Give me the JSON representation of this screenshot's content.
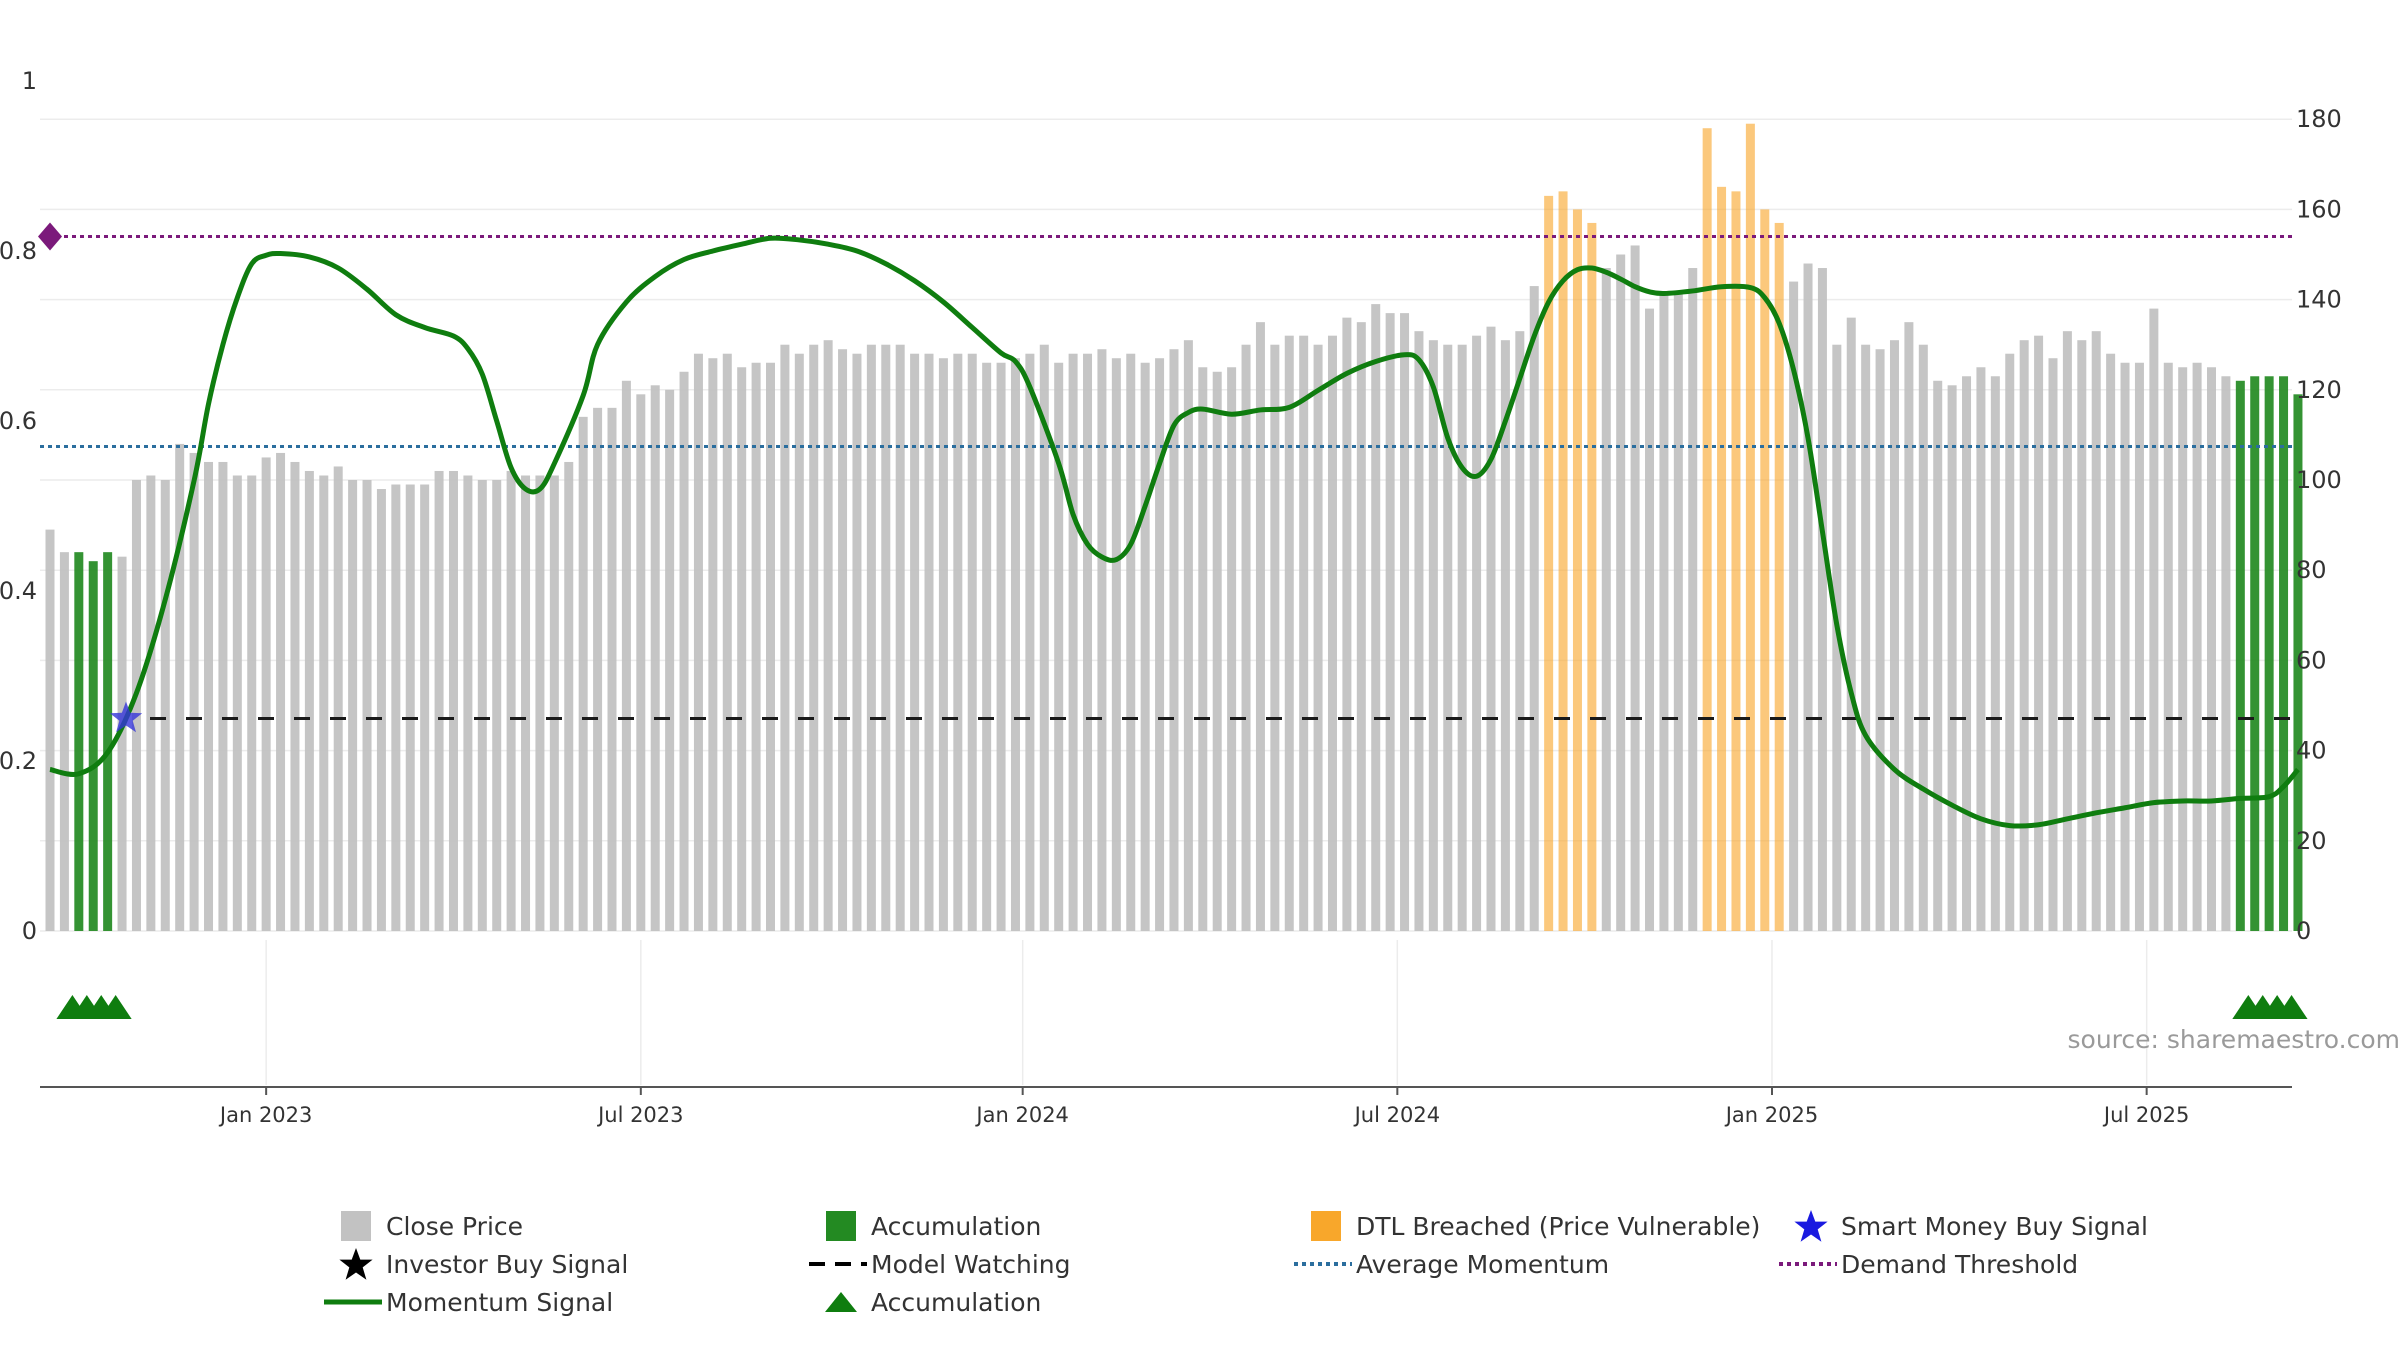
{
  "chart_data": {
    "type": "bar+line",
    "title": "",
    "source": "source: sharemaestro.com",
    "left_axis": {
      "ticks": [
        "0",
        "0.2",
        "0.4",
        "0.6",
        "0.8",
        "1"
      ],
      "ylim": [
        0,
        1
      ]
    },
    "right_axis": {
      "ticks": [
        "0",
        "20",
        "40",
        "60",
        "80",
        "100",
        "120",
        "140",
        "160",
        "180"
      ],
      "ylim": [
        0,
        180
      ]
    },
    "x_ticks": [
      "Jan 2023",
      "Jul 2023",
      "Jan 2024",
      "Jul 2024",
      "Jan 2025",
      "Jul 2025"
    ],
    "x_tick_weeks": [
      15,
      41,
      67.5,
      93.5,
      119.5,
      145.5
    ],
    "n_weeks": 157,
    "close_price": [
      89,
      84,
      84,
      82,
      84,
      83,
      100,
      101,
      100,
      108,
      106,
      104,
      104,
      101,
      101,
      105,
      106,
      104,
      102,
      101,
      103,
      100,
      100,
      98,
      99,
      99,
      99,
      102,
      102,
      101,
      100,
      100,
      102,
      101,
      101,
      101,
      104,
      114,
      116,
      116,
      122,
      119,
      121,
      120,
      124,
      128,
      127,
      128,
      125,
      126,
      126,
      130,
      128,
      130,
      131,
      129,
      128,
      130,
      130,
      130,
      128,
      128,
      127,
      128,
      128,
      126,
      126,
      127,
      128,
      130,
      126,
      128,
      128,
      129,
      127,
      128,
      126,
      127,
      129,
      131,
      125,
      124,
      125,
      130,
      135,
      130,
      132,
      132,
      130,
      132,
      136,
      135,
      139,
      137,
      137,
      133,
      131,
      130,
      130,
      132,
      134,
      131,
      133,
      143,
      163,
      164,
      160,
      157,
      147,
      150,
      152,
      138,
      141,
      142,
      147,
      178,
      165,
      164,
      179,
      160,
      157,
      144,
      148,
      147,
      130,
      136,
      130,
      129,
      131,
      135,
      130,
      122,
      121,
      123,
      125,
      123,
      128,
      131,
      132,
      127,
      133,
      131,
      133,
      128,
      126,
      126,
      138,
      126,
      125,
      126,
      125,
      123,
      122,
      123,
      123,
      123,
      119
    ],
    "series_categories": {
      "gray": "Close Price",
      "green": "Accumulation",
      "orange": "DTL Breached (Price Vulnerable)"
    },
    "category_ranges": [
      {
        "category": "green",
        "from": 2,
        "to": 4
      },
      {
        "category": "orange",
        "from": 104,
        "to": 107
      },
      {
        "category": "orange",
        "from": 115,
        "to": 120
      },
      {
        "category": "green",
        "from": 152,
        "to": 156
      }
    ],
    "momentum": [
      [
        0,
        0.19
      ],
      [
        2,
        0.185
      ],
      [
        4,
        0.21
      ],
      [
        6,
        0.28
      ],
      [
        8,
        0.39
      ],
      [
        10,
        0.53
      ],
      [
        11,
        0.62
      ],
      [
        12,
        0.69
      ],
      [
        13,
        0.745
      ],
      [
        14,
        0.785
      ],
      [
        15,
        0.795
      ],
      [
        16,
        0.797
      ],
      [
        18,
        0.793
      ],
      [
        20,
        0.78
      ],
      [
        22,
        0.755
      ],
      [
        24,
        0.725
      ],
      [
        26,
        0.71
      ],
      [
        28,
        0.7
      ],
      [
        29,
        0.685
      ],
      [
        30,
        0.655
      ],
      [
        31,
        0.6
      ],
      [
        32,
        0.545
      ],
      [
        33,
        0.52
      ],
      [
        34,
        0.52
      ],
      [
        35,
        0.55
      ],
      [
        37,
        0.63
      ],
      [
        38,
        0.69
      ],
      [
        40,
        0.74
      ],
      [
        42,
        0.77
      ],
      [
        44,
        0.79
      ],
      [
        46,
        0.8
      ],
      [
        48,
        0.808
      ],
      [
        50,
        0.815
      ],
      [
        52,
        0.813
      ],
      [
        54,
        0.808
      ],
      [
        56,
        0.8
      ],
      [
        58,
        0.785
      ],
      [
        60,
        0.765
      ],
      [
        62,
        0.74
      ],
      [
        64,
        0.71
      ],
      [
        66,
        0.68
      ],
      [
        67,
        0.67
      ],
      [
        68,
        0.64
      ],
      [
        70,
        0.55
      ],
      [
        71,
        0.49
      ],
      [
        72,
        0.455
      ],
      [
        73,
        0.44
      ],
      [
        74,
        0.437
      ],
      [
        75,
        0.455
      ],
      [
        76,
        0.5
      ],
      [
        77,
        0.55
      ],
      [
        78,
        0.595
      ],
      [
        79,
        0.61
      ],
      [
        80,
        0.614
      ],
      [
        82,
        0.608
      ],
      [
        84,
        0.613
      ],
      [
        86,
        0.616
      ],
      [
        88,
        0.636
      ],
      [
        90,
        0.656
      ],
      [
        92,
        0.67
      ],
      [
        94,
        0.678
      ],
      [
        95,
        0.672
      ],
      [
        96,
        0.64
      ],
      [
        97,
        0.58
      ],
      [
        98,
        0.545
      ],
      [
        99,
        0.535
      ],
      [
        100,
        0.555
      ],
      [
        101,
        0.6
      ],
      [
        102,
        0.65
      ],
      [
        103,
        0.7
      ],
      [
        104,
        0.74
      ],
      [
        105,
        0.765
      ],
      [
        106,
        0.778
      ],
      [
        107,
        0.78
      ],
      [
        108,
        0.775
      ],
      [
        109,
        0.767
      ],
      [
        110,
        0.758
      ],
      [
        111,
        0.752
      ],
      [
        112,
        0.75
      ],
      [
        114,
        0.753
      ],
      [
        116,
        0.758
      ],
      [
        118,
        0.757
      ],
      [
        119,
        0.745
      ],
      [
        120,
        0.715
      ],
      [
        121,
        0.66
      ],
      [
        122,
        0.58
      ],
      [
        123,
        0.47
      ],
      [
        124,
        0.36
      ],
      [
        125,
        0.28
      ],
      [
        126,
        0.23
      ],
      [
        128,
        0.19
      ],
      [
        130,
        0.167
      ],
      [
        132,
        0.148
      ],
      [
        134,
        0.132
      ],
      [
        136,
        0.124
      ],
      [
        138,
        0.125
      ],
      [
        140,
        0.132
      ],
      [
        142,
        0.139
      ],
      [
        144,
        0.145
      ],
      [
        146,
        0.151
      ],
      [
        148,
        0.153
      ],
      [
        150,
        0.153
      ],
      [
        152,
        0.156
      ],
      [
        154,
        0.158
      ],
      [
        155,
        0.17
      ],
      [
        156,
        0.19
      ]
    ],
    "model_watching_level": 0.25,
    "average_momentum_level": 0.57,
    "demand_threshold_level": 0.817,
    "smart_money_buy_week": 5,
    "demand_marker_week": 0,
    "accumulation_triangles": [
      1,
      2,
      3,
      4,
      152,
      153,
      154,
      155
    ],
    "legend": [
      {
        "label": "Close Price",
        "symbol": "gray-square",
        "color": "#c2c2c2"
      },
      {
        "label": "Accumulation",
        "symbol": "green-square",
        "color": "#238a22"
      },
      {
        "label": "DTL Breached (Price Vulnerable)",
        "symbol": "orange-square",
        "color": "#f8a72b"
      },
      {
        "label": "Smart Money Buy Signal",
        "symbol": "blue-star",
        "color": "#1a1ae0"
      },
      {
        "label": "Investor Buy Signal",
        "symbol": "black-star",
        "color": "#000000"
      },
      {
        "label": "Model Watching",
        "symbol": "black-dash",
        "color": "#000000"
      },
      {
        "label": "Average Momentum",
        "symbol": "blue-dot",
        "color": "#2b6e9e"
      },
      {
        "label": "Demand Threshold",
        "symbol": "purple-dot",
        "color": "#7b1a7b"
      },
      {
        "label": "Momentum Signal",
        "symbol": "green-line",
        "color": "#0f7d0f"
      },
      {
        "label": "Accumulation",
        "symbol": "green-triangle",
        "color": "#0f7d0f"
      }
    ]
  }
}
